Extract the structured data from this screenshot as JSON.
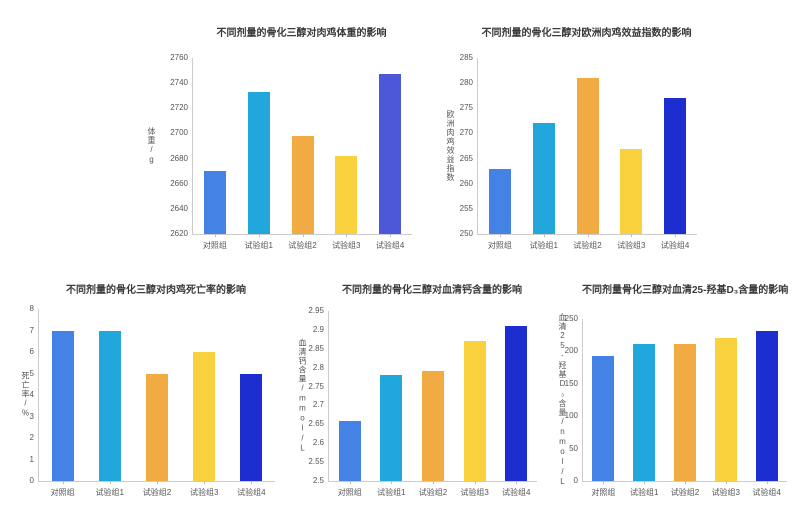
{
  "page": {
    "background": "#ffffff",
    "text_color": "#555555",
    "title_color": "#3a3a3a",
    "axis_color": "#cccccc"
  },
  "chart_data": [
    {
      "type": "bar",
      "title": "不同剂量的骨化三醇对肉鸡体重的影响",
      "ylabel": "体重/g",
      "xlabel": "",
      "categories": [
        "对照组",
        "试验组1",
        "试验组2",
        "试验组3",
        "试验组4"
      ],
      "values": [
        2670,
        2733,
        2698,
        2682,
        2747
      ],
      "ylim": [
        2620,
        2760
      ],
      "ystep": 20,
      "grid": false,
      "legend": "none",
      "colors": [
        "#4582e6",
        "#22a7dc",
        "#f2aa43",
        "#f8d13d",
        "#4d58d8"
      ]
    },
    {
      "type": "bar",
      "title": "不同剂量的骨化三醇对欧洲肉鸡效益指数的影响",
      "ylabel": "欧洲肉鸡效益指数",
      "xlabel": "",
      "categories": [
        "对照组",
        "试验组1",
        "试验组2",
        "试验组3",
        "试验组4"
      ],
      "values": [
        263,
        272,
        281,
        267,
        277
      ],
      "ylim": [
        250,
        285
      ],
      "ystep": 5,
      "grid": false,
      "legend": "none",
      "colors": [
        "#4582e6",
        "#22a7dc",
        "#f2aa43",
        "#f8d13d",
        "#1c2ed0"
      ]
    },
    {
      "type": "bar",
      "title": "不同剂量的骨化三醇对肉鸡死亡率的影响",
      "ylabel": "死亡率/%",
      "xlabel": "",
      "categories": [
        "对照组",
        "试验组1",
        "试验组2",
        "试验组3",
        "试验组4"
      ],
      "values": [
        7,
        7,
        5,
        6,
        5
      ],
      "ylim": [
        0,
        8
      ],
      "ystep": 1,
      "grid": false,
      "legend": "none",
      "colors": [
        "#4582e6",
        "#22a7dc",
        "#f2aa43",
        "#f8d13d",
        "#1c2ed0"
      ]
    },
    {
      "type": "bar",
      "title": "不同剂量的骨化三醇对血清钙含量的影响",
      "ylabel": "血清钙含量/mmol/L",
      "xlabel": "",
      "categories": [
        "对照组",
        "试验组1",
        "试验组2",
        "试验组3",
        "试验组4"
      ],
      "values": [
        2.66,
        2.78,
        2.79,
        2.87,
        2.91
      ],
      "ylim": [
        2.5,
        2.95
      ],
      "ystep": 0.05,
      "grid": false,
      "legend": "none",
      "colors": [
        "#4582e6",
        "#22a7dc",
        "#f2aa43",
        "#f8d13d",
        "#1c2ed0"
      ]
    },
    {
      "type": "bar",
      "title": "不同剂量骨化三醇对血清25-羟基D₃含量的影响",
      "ylabel": "血清25-羟基D₃含量/nmol/L",
      "xlabel": "",
      "categories": [
        "对照组",
        "试验组1",
        "试验组2",
        "试验组3",
        "试验组4"
      ],
      "values": [
        193,
        212,
        212,
        221,
        232
      ],
      "ylim": [
        0,
        250
      ],
      "ystep": 50,
      "grid": false,
      "legend": "none",
      "colors": [
        "#4582e6",
        "#22a7dc",
        "#f2aa43",
        "#f8d13d",
        "#1c2ed0"
      ]
    }
  ]
}
